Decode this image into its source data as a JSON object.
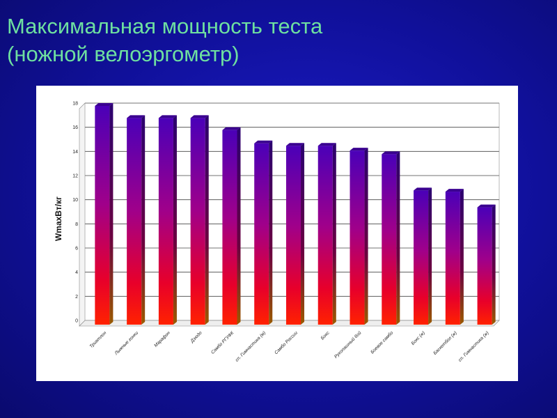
{
  "slide": {
    "title_line1": "Максимальная мощность теста",
    "title_line2": "(ножной велоэргометр)"
  },
  "colors": {
    "background": "#12129e",
    "title": "#6ee0a0",
    "bar_top": "#5a00b4",
    "bar_bottom": "#ff1a00",
    "bar_side": "#7a2a00"
  },
  "chart_data": {
    "type": "bar",
    "title": "",
    "xlabel": "",
    "ylabel": "WmaxВт/кг",
    "ylim": [
      0,
      18
    ],
    "yticks": [
      0,
      2,
      4,
      6,
      8,
      10,
      12,
      14,
      16,
      18
    ],
    "grid": true,
    "categories": [
      "Триатлон",
      "Лыжные гонки",
      "Марафон",
      "Дзюдо",
      "Самбо РГУФК",
      "сп. Гимнастика (м)",
      "Самбо России",
      "Бокс",
      "Рукопашный бой",
      "Боевое самбо",
      "Бокс (ж)",
      "Баскетбол (ж)",
      "сп. Гимнастика (ж)"
    ],
    "values": [
      18.0,
      17.0,
      17.0,
      17.0,
      16.0,
      14.9,
      14.7,
      14.7,
      14.3,
      14.0,
      11.0,
      10.9,
      9.6
    ]
  }
}
